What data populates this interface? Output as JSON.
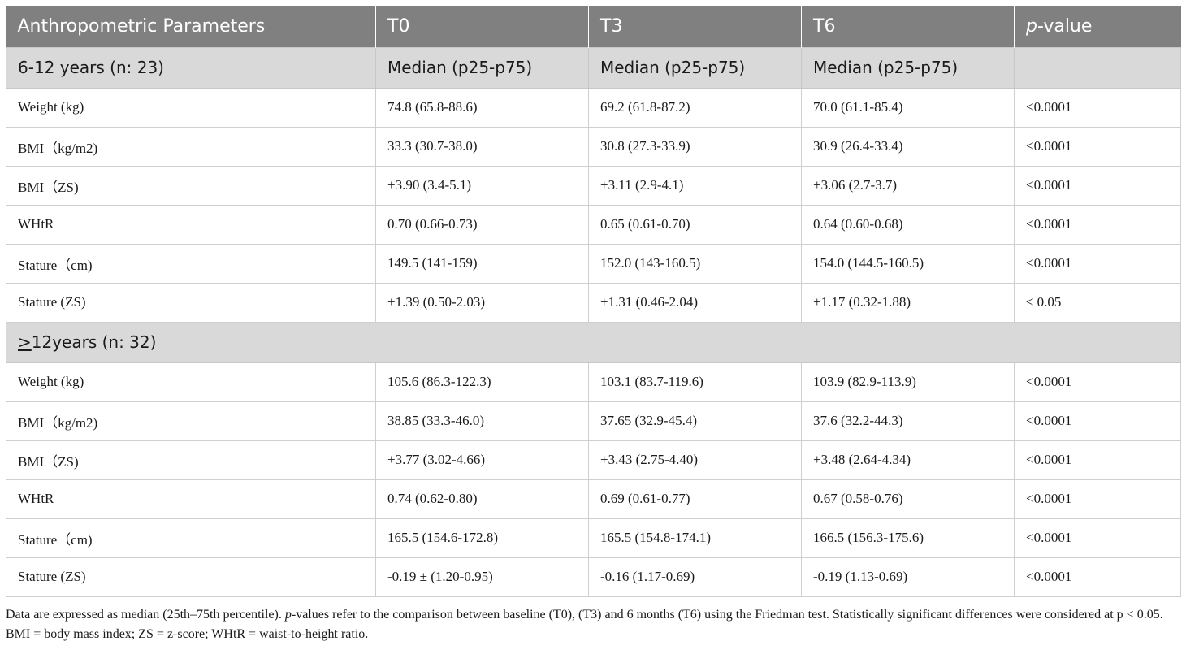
{
  "header": {
    "col0": "Anthropometric Parameters",
    "col1": "T0",
    "col2": "T3",
    "col3": "T6",
    "col4_italic": "p",
    "col4_rest": "-value"
  },
  "groups": [
    {
      "label": "6-12 years (n: 23)",
      "sub": [
        "Median (p25-p75)",
        "Median (p25-p75)",
        "Median (p25-p75)",
        ""
      ],
      "rows": [
        [
          "Weight (kg)",
          "74.8 (65.8-88.6)",
          "69.2 (61.8-87.2)",
          "70.0 (61.1-85.4)",
          "<0.0001"
        ],
        [
          "BMI（kg/m2)",
          "33.3 (30.7-38.0)",
          "30.8 (27.3-33.9)",
          "30.9 (26.4-33.4)",
          "<0.0001"
        ],
        [
          "BMI（ZS)",
          "+3.90 (3.4-5.1)",
          "+3.11 (2.9-4.1)",
          "+3.06 (2.7-3.7)",
          "<0.0001"
        ],
        [
          "WHtR",
          "0.70 (0.66-0.73)",
          "0.65 (0.61-0.70)",
          "0.64 (0.60-0.68)",
          "<0.0001"
        ],
        [
          "Stature（cm)",
          "149.5 (141-159)",
          "152.0 (143-160.5)",
          "154.0 (144.5-160.5)",
          "<0.0001"
        ],
        [
          "Stature (ZS)",
          "+1.39 (0.50-2.03)",
          "+1.31 (0.46-2.04)",
          "+1.17 (0.32-1.88)",
          "≤ 0.05"
        ]
      ]
    },
    {
      "label_underlined": ">",
      "label_rest": "12years (n: 32)",
      "rows": [
        [
          "Weight (kg)",
          "105.6 (86.3-122.3)",
          "103.1 (83.7-119.6)",
          "103.9 (82.9-113.9)",
          "<0.0001"
        ],
        [
          "BMI（kg/m2)",
          "38.85 (33.3-46.0)",
          "37.65 (32.9-45.4)",
          "37.6 (32.2-44.3)",
          "<0.0001"
        ],
        [
          "BMI（ZS)",
          "+3.77 (3.02-4.66)",
          "+3.43 (2.75-4.40)",
          "+3.48 (2.64-4.34)",
          "<0.0001"
        ],
        [
          "WHtR",
          "0.74 (0.62-0.80)",
          "0.69 (0.61-0.77)",
          "0.67 (0.58-0.76)",
          "<0.0001"
        ],
        [
          "Stature（cm)",
          "165.5 (154.6-172.8)",
          "165.5 (154.8-174.1)",
          "166.5 (156.3-175.6)",
          "<0.0001"
        ],
        [
          "Stature (ZS)",
          "-0.19 ± (1.20-0.95)",
          "-0.16 (1.17-0.69)",
          "-0.19 (1.13-0.69)",
          "<0.0001"
        ]
      ]
    }
  ],
  "footnote": {
    "part1": "Data are expressed as median (25th–75th percentile). ",
    "part2_italic": "p",
    "part3": "-values refer to the comparison between baseline (T0), (T3) and 6 months (T6) using the Friedman test. Statistically significant differences were considered at p < 0.05. BMI = body mass index; ZS = z-score; WHtR = waist-to-height ratio."
  },
  "colors": {
    "header_bg": "#808080",
    "group_bg": "#d9d9d9",
    "border": "#cfcfcf"
  }
}
